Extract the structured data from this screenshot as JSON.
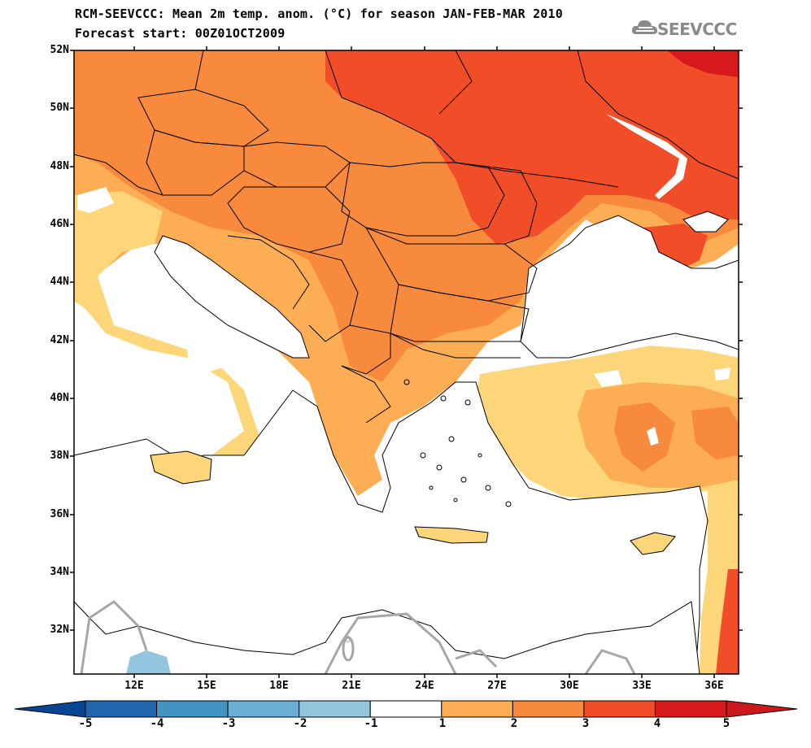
{
  "title": {
    "line1": "RCM-SEEVCCC: Mean 2m temp. anom. (°C) for season JAN-FEB-MAR 2010",
    "line2": "Forecast start: 00Z01OCT2009"
  },
  "logo": {
    "text": "SEEVCCC",
    "icon": "cloud-icon",
    "color": "#8a8a8a"
  },
  "map": {
    "lat_range": [
      30.5,
      52
    ],
    "lon_range": [
      9.5,
      37
    ],
    "lat_ticks": [
      "52N",
      "50N",
      "48N",
      "46N",
      "44N",
      "42N",
      "40N",
      "38N",
      "36N",
      "34N",
      "32N"
    ],
    "lon_ticks": [
      "12E",
      "15E",
      "18E",
      "21E",
      "24E",
      "27E",
      "30E",
      "33E",
      "36E"
    ],
    "contour_label": "0"
  },
  "colorbar": {
    "labels": [
      "-5",
      "-4",
      "-3",
      "-2",
      "-1",
      "1",
      "2",
      "3",
      "4",
      "5"
    ],
    "colors": [
      "#2166ac",
      "#4393c3",
      "#6aaed6",
      "#92c5de",
      "#ffffff",
      "#fdd67a",
      "#fdae55",
      "#f78a3c",
      "#f04d28",
      "#d7191c"
    ],
    "under_color": "#084594",
    "over_color": "#cb181d"
  }
}
